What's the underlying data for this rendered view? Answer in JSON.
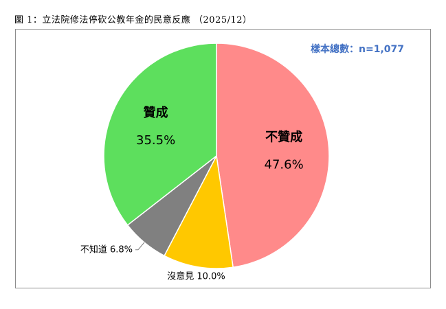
{
  "figure": {
    "title": "圖 1：立法院修法停砍公教年金的民意反應 （2025/12）",
    "sample_note": "樣本總數：n=1,077"
  },
  "chart_data": {
    "type": "pie",
    "title": "圖 1：立法院修法停砍公教年金的民意反應 （2025/12）",
    "annotation": "樣本總數：n=1,077",
    "start": "12 o'clock",
    "direction": "clockwise",
    "slices": [
      {
        "label": "不贊成",
        "value": 47.6,
        "value_label": "47.6%",
        "color": "#ff8a8a",
        "label_position": "inside"
      },
      {
        "label": "沒意見",
        "value": 10.0,
        "value_label": "10.0%",
        "color": "#ffc800",
        "label_position": "outside"
      },
      {
        "label": "不知道",
        "value": 6.8,
        "value_label": "6.8%",
        "color": "#808080",
        "label_position": "outside"
      },
      {
        "label": "贊成",
        "value": 35.5,
        "value_label": "35.5%",
        "color": "#5ddf5d",
        "label_position": "inside"
      }
    ]
  }
}
